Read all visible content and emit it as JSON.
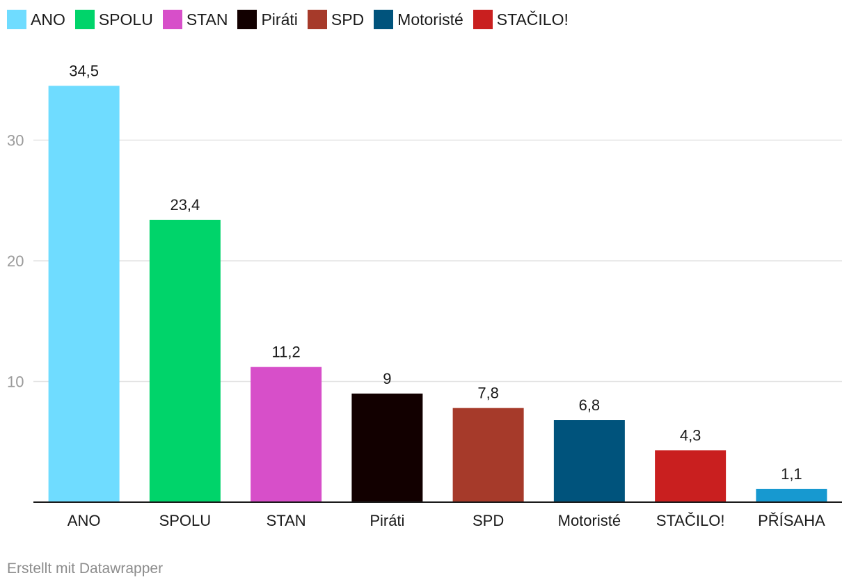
{
  "legend": [
    {
      "label": "ANO",
      "color": "#6fdcff"
    },
    {
      "label": "SPOLU",
      "color": "#00d46a"
    },
    {
      "label": "STAN",
      "color": "#d74fc9"
    },
    {
      "label": "Piráti",
      "color": "#120000"
    },
    {
      "label": "SPD",
      "color": "#a63a2a"
    },
    {
      "label": "Motoristé",
      "color": "#00537c"
    },
    {
      "label": "STAČILO!",
      "color": "#c91f1f"
    }
  ],
  "chart_data": {
    "type": "bar",
    "categories": [
      "ANO",
      "SPOLU",
      "STAN",
      "Piráti",
      "SPD",
      "Motoristé",
      "STAČILO!",
      "PŘÍSAHA"
    ],
    "values": [
      34.5,
      23.4,
      11.2,
      9,
      7.8,
      6.8,
      4.3,
      1.1
    ],
    "value_labels": [
      "34,5",
      "23,4",
      "11,2",
      "9",
      "7,8",
      "6,8",
      "4,3",
      "1,1"
    ],
    "colors": [
      "#6fdcff",
      "#00d46a",
      "#d74fc9",
      "#120000",
      "#a63a2a",
      "#00537c",
      "#c91f1f",
      "#1799d0"
    ],
    "yticks": [
      10,
      20,
      30
    ],
    "ylim": [
      0,
      36
    ],
    "grid": true,
    "legend_position": "top-left"
  },
  "footer": {
    "credit": "Erstellt mit Datawrapper"
  }
}
